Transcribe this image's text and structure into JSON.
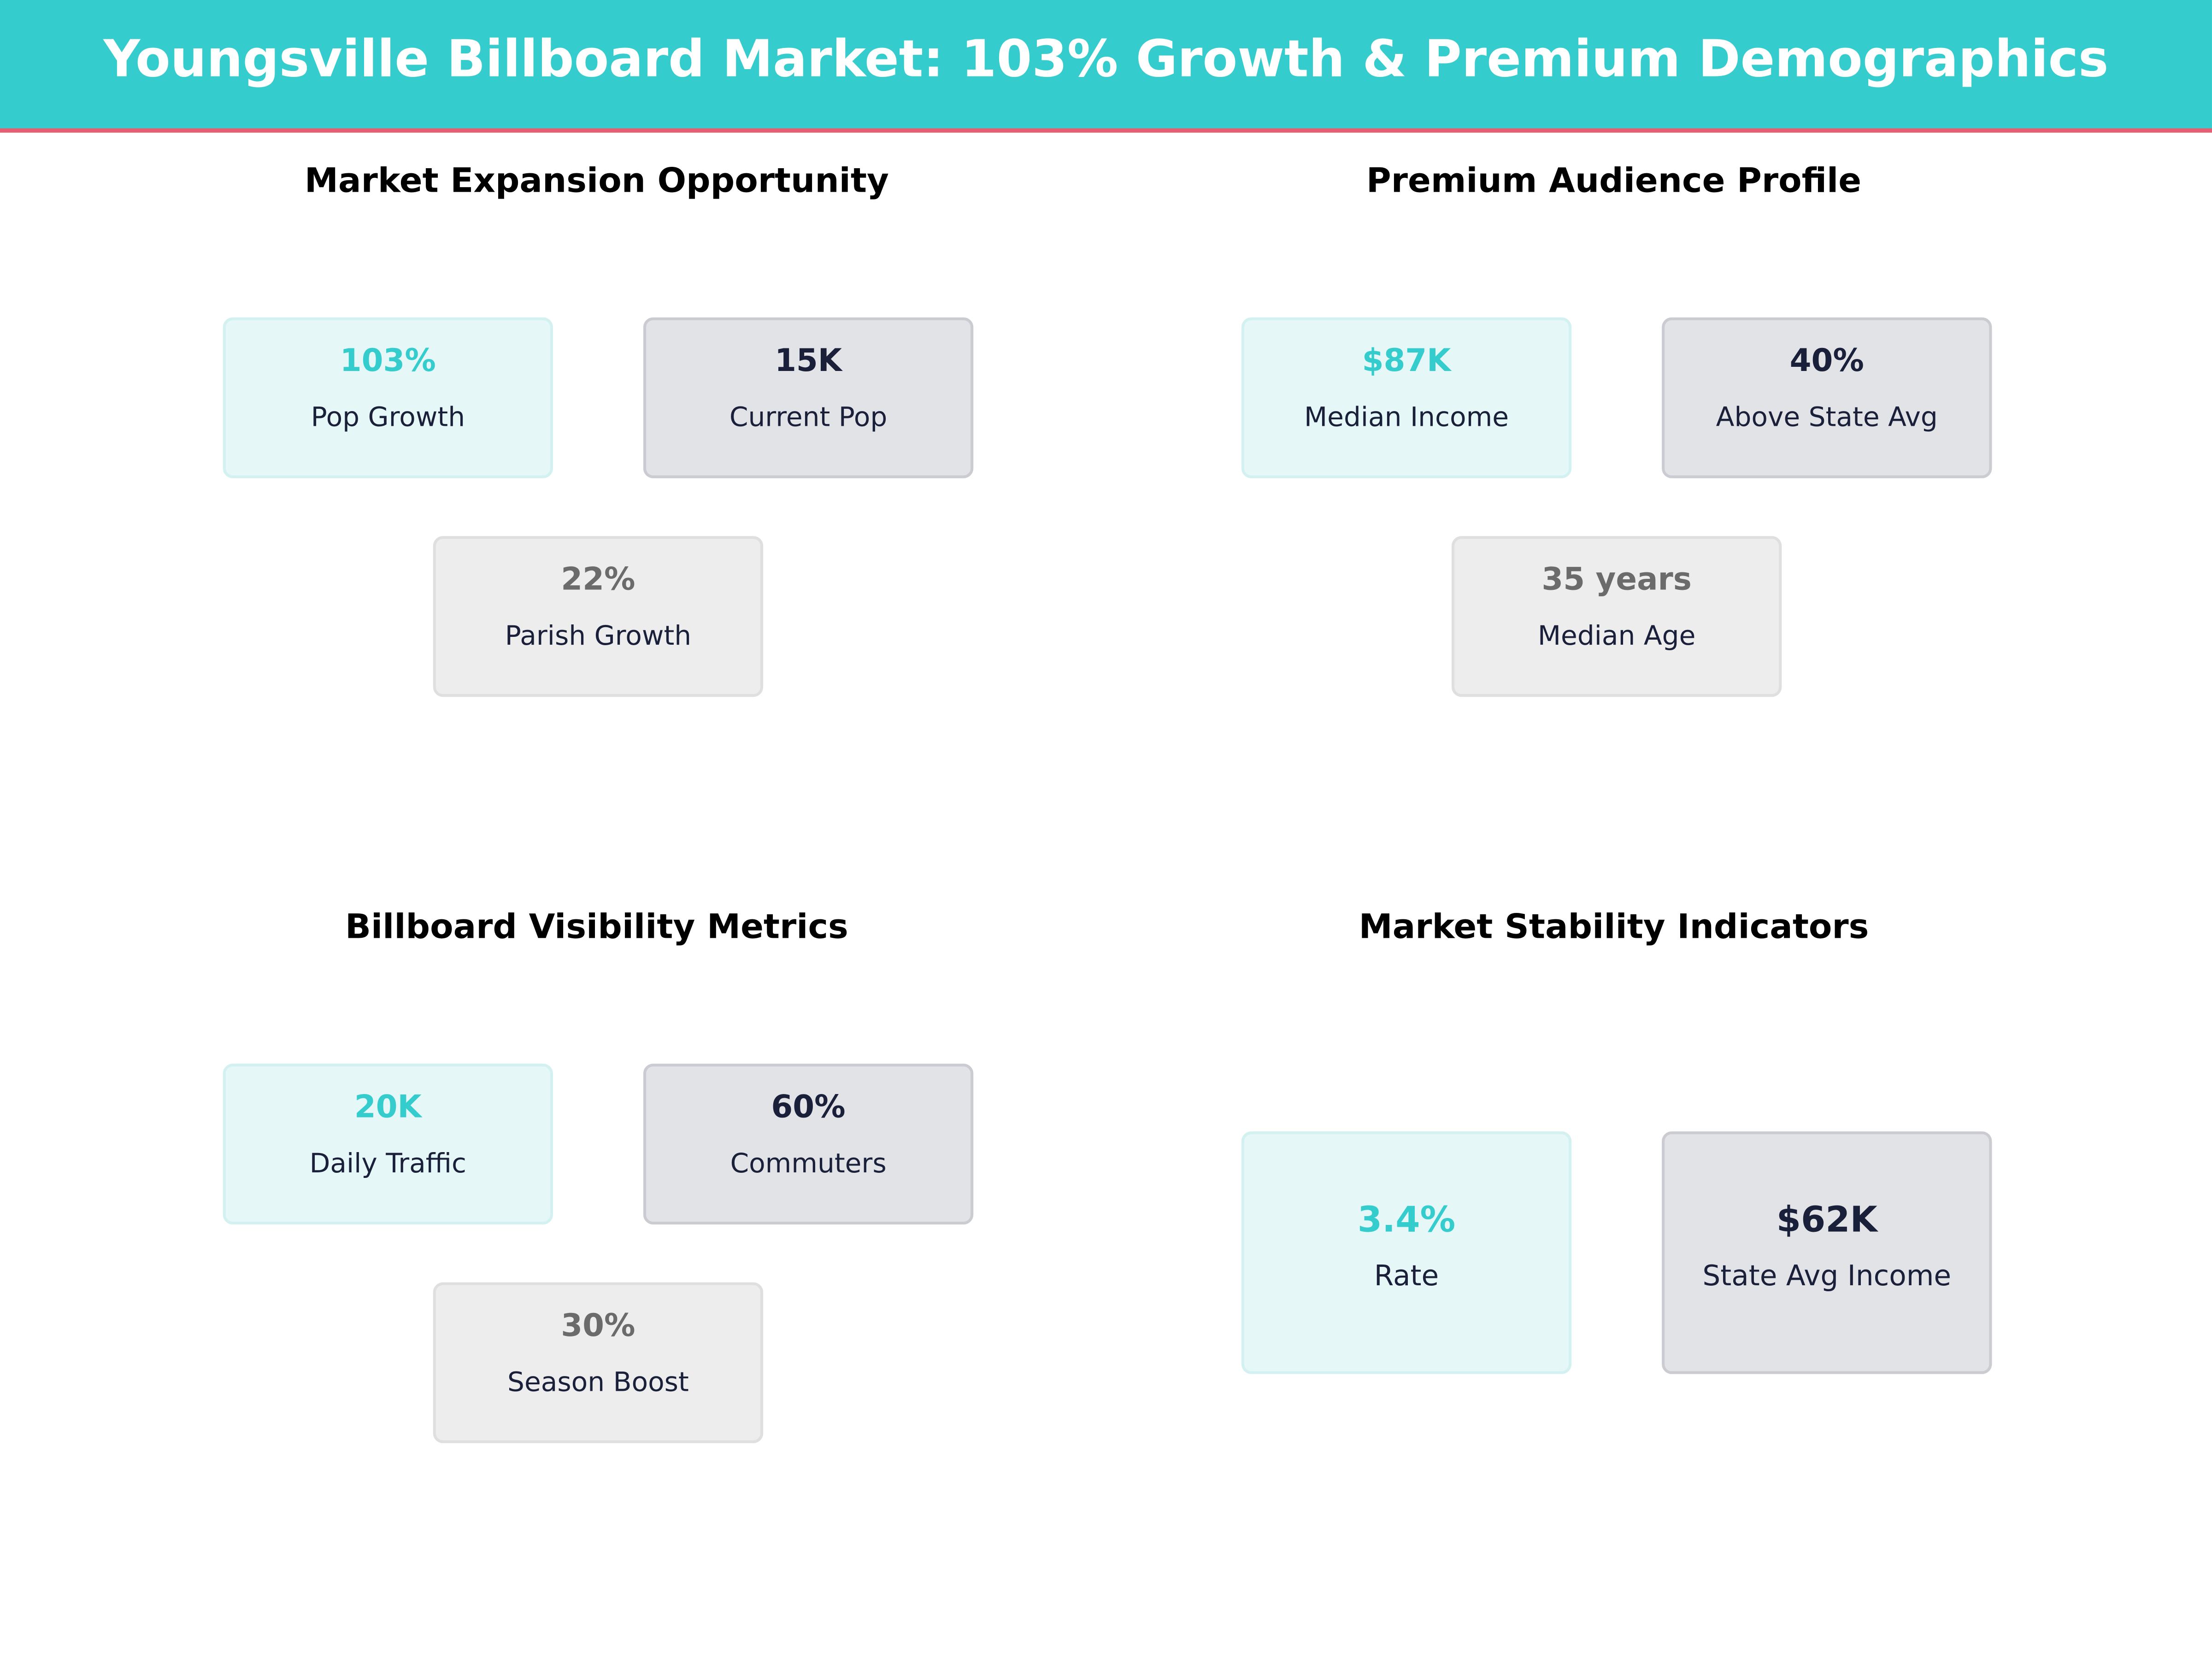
{
  "title": "Youngsville Billboard Market: 103% Growth & Premium Demographics",
  "colors": {
    "accent": "#34CCCC",
    "header_border": "#E85D6F",
    "dark": "#1A1F3A",
    "muted": "#6B6B6B"
  },
  "panels": [
    {
      "title": "Market Expansion Opportunity",
      "cards": [
        {
          "value": "103%",
          "label": "Pop Growth"
        },
        {
          "value": "15K",
          "label": "Current Pop"
        },
        {
          "value": "22%",
          "label": "Parish Growth"
        }
      ]
    },
    {
      "title": "Premium Audience Profile",
      "cards": [
        {
          "value": "$87K",
          "label": "Median Income"
        },
        {
          "value": "40%",
          "label": "Above State Avg"
        },
        {
          "value": "35 years",
          "label": "Median Age"
        }
      ]
    },
    {
      "title": "Billboard Visibility Metrics",
      "cards": [
        {
          "value": "20K",
          "label": "Daily Traffic"
        },
        {
          "value": "60%",
          "label": "Commuters"
        },
        {
          "value": "30%",
          "label": "Season Boost"
        }
      ]
    },
    {
      "title": "Market Stability Indicators",
      "cards": [
        {
          "value": "3.4%",
          "label": "Rate"
        },
        {
          "value": "$62K",
          "label": "State Avg Income"
        }
      ]
    }
  ]
}
